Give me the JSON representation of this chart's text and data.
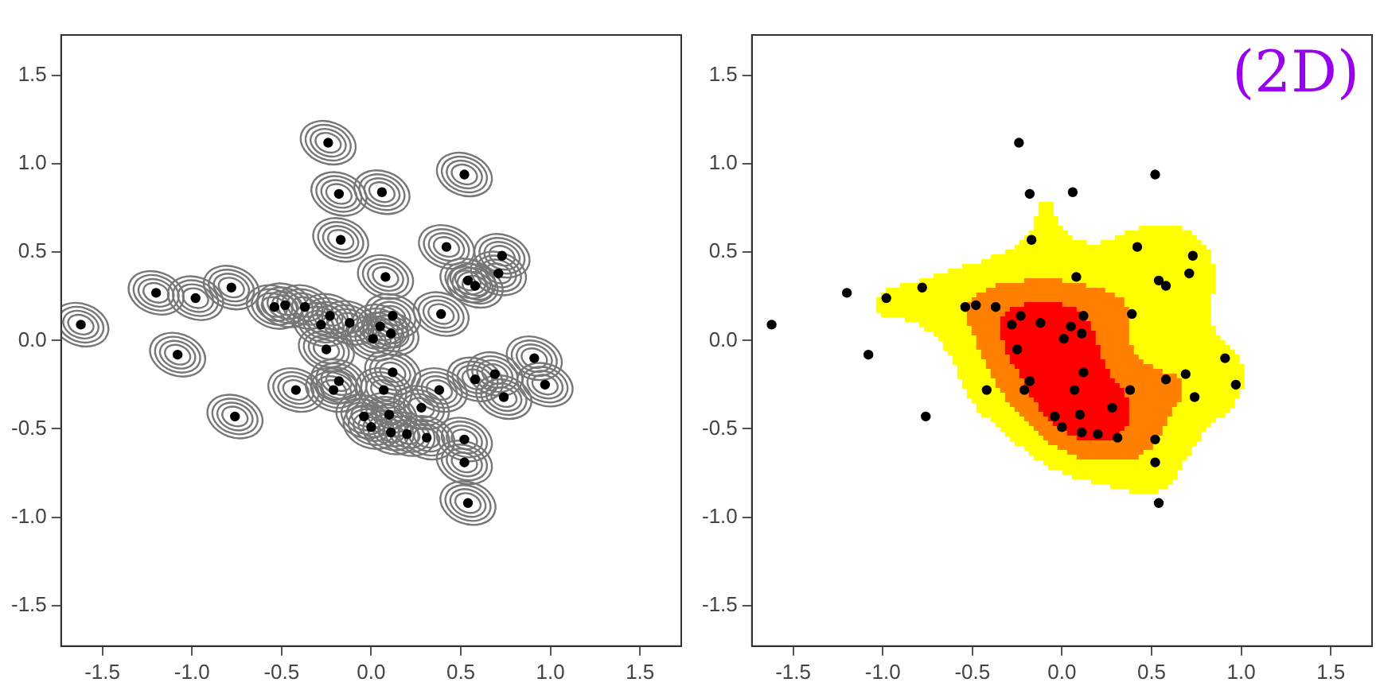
{
  "chart_data": [
    {
      "type": "scatter",
      "x": [
        -1.62,
        -1.2,
        -0.98,
        -0.78,
        -1.08,
        -0.76,
        -0.24,
        -0.18,
        0.06,
        0.52,
        -0.17,
        0.08,
        0.42,
        0.73,
        0.71,
        0.54,
        0.58,
        0.39,
        -0.54,
        -0.48,
        -0.37,
        -0.23,
        -0.28,
        -0.12,
        0.05,
        0.12,
        0.01,
        0.11,
        -0.25,
        0.91,
        0.12,
        -0.42,
        -0.18,
        -0.21,
        0.07,
        0.38,
        0.58,
        0.69,
        0.74,
        0.97,
        0.28,
        -0.04,
        0.1,
        0.0,
        0.11,
        0.2,
        0.31,
        0.52,
        0.52,
        0.54
      ],
      "values": [
        0.09,
        0.27,
        0.24,
        0.3,
        -0.08,
        -0.43,
        1.12,
        0.83,
        0.84,
        0.94,
        0.57,
        0.36,
        0.53,
        0.48,
        0.38,
        0.34,
        0.31,
        0.15,
        0.19,
        0.2,
        0.19,
        0.14,
        0.09,
        0.1,
        0.08,
        0.14,
        0.01,
        0.04,
        -0.05,
        -0.1,
        -0.18,
        -0.28,
        -0.23,
        -0.28,
        -0.28,
        -0.28,
        -0.22,
        -0.19,
        -0.32,
        -0.25,
        -0.38,
        -0.43,
        -0.42,
        -0.49,
        -0.52,
        -0.53,
        -0.55,
        -0.56,
        -0.69,
        -0.92
      ],
      "color": "#000000",
      "marker": "circle",
      "grid": false,
      "xlim": [
        -1.73,
        1.73
      ],
      "ylim": [
        -1.73,
        1.73
      ],
      "xticks": [
        -1.5,
        {
          "value": -1,
          "label": "-1.0"
        },
        -0.5,
        {
          "value": 0,
          "label": "0.0"
        },
        0.5,
        {
          "value": 1,
          "label": "1.0"
        },
        1.5
      ],
      "yticks": [
        -1.5,
        {
          "value": -1,
          "label": "-1.0"
        },
        -0.5,
        {
          "value": 0,
          "label": "0.0"
        },
        0.5,
        {
          "value": 1,
          "label": "1.0"
        },
        1.5
      ]
    },
    {
      "type": "scatter",
      "x": [
        -1.62,
        -1.2,
        -0.98,
        -0.78,
        -1.08,
        -0.76,
        -0.24,
        -0.18,
        0.06,
        0.52,
        -0.17,
        0.08,
        0.42,
        0.73,
        0.71,
        0.54,
        0.58,
        0.39,
        -0.54,
        -0.48,
        -0.37,
        -0.23,
        -0.28,
        -0.12,
        0.05,
        0.12,
        0.01,
        0.11,
        -0.25,
        0.91,
        0.12,
        -0.42,
        -0.18,
        -0.21,
        0.07,
        0.38,
        0.58,
        0.69,
        0.74,
        0.97,
        0.28,
        -0.04,
        0.1,
        0.0,
        0.11,
        0.2,
        0.31,
        0.52,
        0.52,
        0.54
      ],
      "values": [
        0.09,
        0.27,
        0.24,
        0.3,
        -0.08,
        -0.43,
        1.12,
        0.83,
        0.84,
        0.94,
        0.57,
        0.36,
        0.53,
        0.48,
        0.38,
        0.34,
        0.31,
        0.15,
        0.19,
        0.2,
        0.19,
        0.14,
        0.09,
        0.1,
        0.08,
        0.14,
        0.01,
        0.04,
        -0.05,
        -0.1,
        -0.18,
        -0.28,
        -0.23,
        -0.28,
        -0.28,
        -0.28,
        -0.22,
        -0.19,
        -0.32,
        -0.25,
        -0.38,
        -0.43,
        -0.42,
        -0.49,
        -0.52,
        -0.53,
        -0.55,
        -0.56,
        -0.69,
        -0.92
      ],
      "color": "#000000",
      "marker": "circle",
      "grid": false,
      "xlim": [
        -1.73,
        1.73
      ],
      "ylim": [
        -1.73,
        1.73
      ],
      "xticks": [
        -1.5,
        {
          "value": -1,
          "label": "-1.0"
        },
        -0.5,
        {
          "value": 0,
          "label": "0.0"
        },
        0.5,
        {
          "value": 1,
          "label": "1.0"
        },
        1.5
      ],
      "yticks": [
        -1.5,
        {
          "value": -1,
          "label": "-1.0"
        },
        -0.5,
        {
          "value": 0,
          "label": "0.0"
        },
        0.5,
        {
          "value": 1,
          "label": "1.0"
        },
        1.5
      ],
      "annotations": [
        "(2D)"
      ]
    }
  ]
}
